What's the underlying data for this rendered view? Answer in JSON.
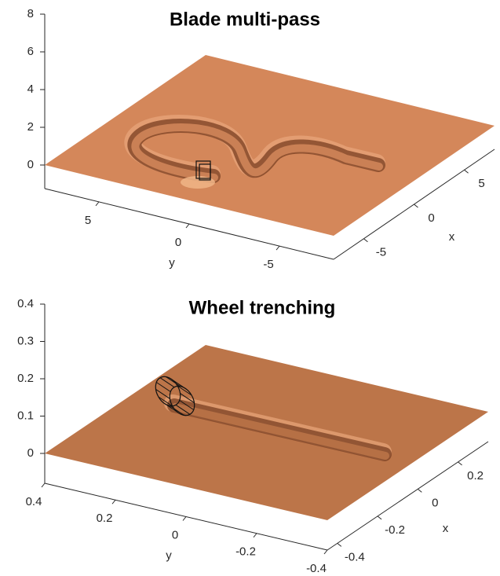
{
  "chart_data": [
    {
      "type": "surface",
      "title": "Blade multi-pass",
      "xlabel": "x",
      "ylabel": "y",
      "xlim": [
        -8,
        8
      ],
      "ylim": [
        -8,
        8
      ],
      "zlim": [
        -1.25,
        8
      ],
      "xticks": [
        -5,
        0,
        5
      ],
      "yticks": [
        5,
        0,
        -5
      ],
      "zticks": [
        0,
        2,
        4,
        6,
        8
      ],
      "color": "#d4875a",
      "grid": false
    },
    {
      "type": "surface",
      "title": "Wheel trenching",
      "xlabel": "x",
      "ylabel": "y",
      "xlim": [
        -0.45,
        0.35
      ],
      "ylim": [
        -0.4,
        0.4
      ],
      "zlim": [
        -0.08,
        0.4
      ],
      "xticks": [
        -0.4,
        -0.2,
        0,
        0.2
      ],
      "yticks": [
        0.4,
        0.2,
        0,
        -0.2,
        -0.4
      ],
      "zticks": [
        0,
        0.1,
        0.2,
        0.3,
        0.4
      ],
      "color": "#bc7549",
      "grid": false
    }
  ]
}
